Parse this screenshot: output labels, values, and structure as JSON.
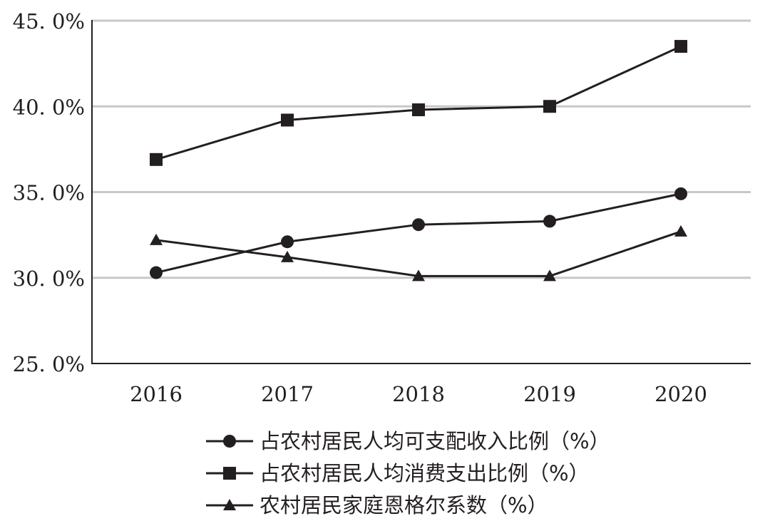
{
  "chart_data": {
    "type": "line",
    "categories": [
      "2016",
      "2017",
      "2018",
      "2019",
      "2020"
    ],
    "ylim": [
      25,
      45
    ],
    "y_ticks": [
      25,
      30,
      35,
      40,
      45
    ],
    "y_tick_labels": [
      "25. 0%",
      "30. 0%",
      "35. 0%",
      "40. 0%",
      "45. 0%"
    ],
    "grid": "horizontal",
    "legend_position": "bottom",
    "series": [
      {
        "name": "占农村居民人均可支配收入比例（%）",
        "marker": "circle",
        "values": [
          30.3,
          32.1,
          33.1,
          33.3,
          34.9
        ]
      },
      {
        "name": "占农村居民人均消费支出比例（%）",
        "marker": "square",
        "values": [
          36.9,
          39.2,
          39.8,
          40.0,
          43.5
        ]
      },
      {
        "name": "农村居民家庭恩格尔系数（%）",
        "marker": "triangle",
        "values": [
          32.2,
          31.2,
          30.1,
          30.1,
          32.7
        ]
      }
    ],
    "colors": {
      "line": "#231f20",
      "grid": "#c8c8c8",
      "axis": "#231f20"
    }
  }
}
